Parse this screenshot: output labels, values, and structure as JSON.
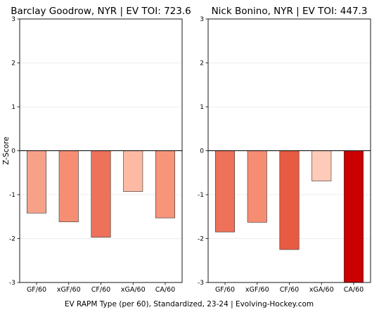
{
  "chart_data": [
    {
      "type": "bar",
      "title": "Barclay Goodrow, NYR  |  EV TOI: 723.6",
      "ylabel": "Z-Score",
      "ylim": [
        -3,
        3
      ],
      "yticks": [
        "-3",
        "-2",
        "-1",
        "0",
        "1",
        "2",
        "3"
      ],
      "grid": "horizontal",
      "categories": [
        "GF/60",
        "xGF/60",
        "CF/60",
        "xGA/60",
        "CA/60"
      ],
      "values": [
        -1.42,
        -1.62,
        -1.97,
        -0.93,
        -1.53
      ],
      "colors": [
        "#f8a189",
        "#f68e74",
        "#ee7259",
        "#fcbaa4",
        "#f6957a"
      ]
    },
    {
      "type": "bar",
      "title": "Nick Bonino, NYR  |  EV TOI: 447.3",
      "ylabel": "",
      "ylim": [
        -3,
        3
      ],
      "yticks": [
        "-3",
        "-2",
        "-1",
        "0",
        "1",
        "2",
        "3"
      ],
      "grid": "horizontal",
      "categories": [
        "GF/60",
        "xGF/60",
        "CF/60",
        "xGA/60",
        "CA/60"
      ],
      "values": [
        -1.85,
        -1.63,
        -2.25,
        -0.69,
        -3.0
      ],
      "colors": [
        "#ee7259",
        "#f68c72",
        "#e65b42",
        "#fecbb8",
        "#cb0000"
      ]
    }
  ],
  "footer": "EV RAPM Type (per 60), Standardized, 23-24    |    Evolving-Hockey.com"
}
